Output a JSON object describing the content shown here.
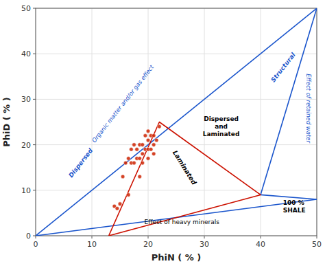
{
  "chart_data": {
    "type": "scatter",
    "xlabel": "PhiN ( % )",
    "ylabel": "PhiD ( % )",
    "xlim": [
      0,
      50
    ],
    "ylim": [
      0,
      50
    ],
    "xticks": [
      0,
      10,
      20,
      30,
      40,
      50
    ],
    "yticks": [
      0,
      10,
      20,
      30,
      40,
      50
    ],
    "grid": true,
    "series": [
      {
        "type": "line",
        "color": "#1a55cc",
        "x": [
          0,
          50
        ],
        "values": [
          0,
          50
        ]
      },
      {
        "type": "line",
        "color": "#1a55cc",
        "x": [
          0,
          50
        ],
        "values": [
          0,
          8
        ]
      },
      {
        "type": "line",
        "color": "#1a55cc",
        "x": [
          40,
          50
        ],
        "values": [
          9,
          50
        ]
      },
      {
        "type": "line",
        "color": "#1a55cc",
        "x": [
          40,
          50
        ],
        "values": [
          9,
          8
        ]
      },
      {
        "type": "line",
        "color": "#cc1100",
        "x": [
          13,
          22,
          40,
          13
        ],
        "values": [
          0,
          25,
          9,
          0
        ]
      },
      {
        "type": "scatter",
        "color": "#cc2200",
        "x": [
          14.0,
          14.5,
          15.0,
          15.5,
          16.0,
          16.5,
          17.0,
          17.0,
          17.5,
          18.0,
          18.0,
          18.5,
          18.5,
          19.0,
          19.0,
          19.0,
          19.5,
          19.5,
          20.0,
          20.0,
          20.0,
          20.0,
          20.5,
          20.5,
          21.0,
          21.0,
          21.0,
          21.5,
          22.0,
          16.5,
          17.5,
          18.5
        ],
        "values": [
          6.5,
          6.0,
          7.0,
          13.0,
          16.0,
          17.0,
          16.0,
          19.0,
          20.0,
          17.0,
          19.0,
          17.0,
          20.0,
          16.0,
          18.0,
          20.0,
          19.0,
          22.0,
          17.0,
          19.0,
          21.0,
          23.0,
          19.0,
          22.0,
          18.0,
          20.0,
          22.0,
          21.0,
          24.0,
          9.0,
          16.0,
          13.0
        ]
      }
    ],
    "annotations": [
      {
        "text": "Dispersed",
        "x": 8,
        "y": 16,
        "color": "#1a55cc"
      },
      {
        "text": "Laminated",
        "x": 26.5,
        "y": 15,
        "color": "#000000"
      },
      {
        "text": "Structural",
        "x": 44,
        "y": 37,
        "color": "#1a55cc"
      },
      {
        "text": "Dispersed\nand\nLaminated",
        "x": 33,
        "y": 24,
        "color": "#000000"
      },
      {
        "text": "Organic matter and/or gas effect",
        "x": 15.5,
        "y": 29,
        "color": "#1a55cc"
      },
      {
        "text": "Effect of heavy minerals",
        "x": 26,
        "y": 3,
        "color": "#000000"
      },
      {
        "text": "Effect of retained water",
        "x": 48.5,
        "y": 28,
        "color": "#1a55cc"
      },
      {
        "text": "100 %\nSHALE",
        "x": 44,
        "y": 6.5,
        "color": "#000000"
      }
    ]
  }
}
